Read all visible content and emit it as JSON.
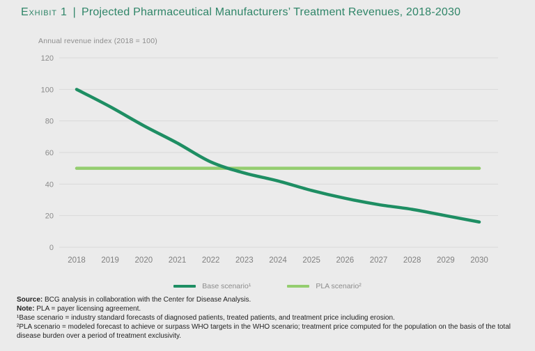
{
  "header": {
    "exhibit_label": "Exhibit 1",
    "divider": "|",
    "title": "Projected Pharmaceutical Manufacturers’ Treatment Revenues, 2018-2030"
  },
  "colors": {
    "title_green": "#2f8568",
    "base_line": "#1e8e63",
    "pla_line": "#94cd6f",
    "gridline": "#d9d9d9",
    "tick_text": "#8a8a8a",
    "background": "#ebebeb"
  },
  "chart_data": {
    "type": "line",
    "title": "Projected Pharmaceutical Manufacturers’ Treatment Revenues, 2018-2030",
    "ylabel": "Annual revenue index (2018 = 100)",
    "xlabel": "",
    "categories": [
      2018,
      2019,
      2020,
      2021,
      2022,
      2023,
      2024,
      2025,
      2026,
      2027,
      2028,
      2029,
      2030
    ],
    "series": [
      {
        "name": "Base scenario¹",
        "color": "#1e8e63",
        "values": [
          100,
          89,
          77,
          66,
          54,
          47,
          42,
          36,
          31,
          27,
          24,
          20,
          16
        ]
      },
      {
        "name": "PLA scenario²",
        "color": "#94cd6f",
        "values": [
          50,
          50,
          50,
          50,
          50,
          50,
          50,
          50,
          50,
          50,
          50,
          50,
          50
        ]
      }
    ],
    "ylim": [
      0,
      120
    ],
    "y_ticks": [
      0,
      20,
      40,
      60,
      80,
      100,
      120
    ],
    "grid": true,
    "legend_position": "bottom"
  },
  "footnotes": [
    {
      "bold": "Source:",
      "text": " BCG analysis in collaboration with the Center for Disease Analysis."
    },
    {
      "bold": "Note:",
      "text": " PLA = payer licensing agreement."
    },
    {
      "bold": "",
      "text": "¹Base scenario = industry standard forecasts of diagnosed patients, treated patients, and treatment price including erosion."
    },
    {
      "bold": "",
      "text": "²PLA scenario = modeled forecast to achieve or surpass WHO targets in the WHO scenario; treatment price computed for the population on the basis of the total disease burden over a period of treatment exclusivity."
    }
  ]
}
